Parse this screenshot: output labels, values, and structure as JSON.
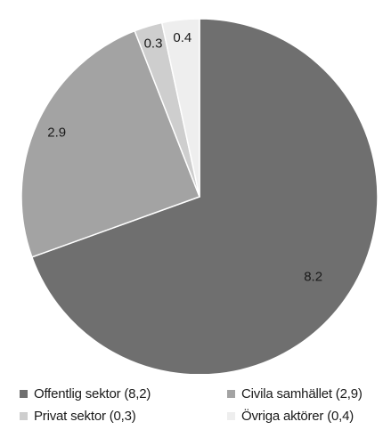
{
  "chart_data": {
    "type": "pie",
    "title": "",
    "slices": [
      {
        "label": "Offentlig sektor (8,2)",
        "value": 8.2,
        "value_label": "8.2",
        "color": "#6f6f6f"
      },
      {
        "label": "Civila samhället (2,9)",
        "value": 2.9,
        "value_label": "2.9",
        "color": "#a3a3a3"
      },
      {
        "label": "Privat sektor (0,3)",
        "value": 0.3,
        "value_label": "0.3",
        "color": "#cecece"
      },
      {
        "label": "Övriga aktörer (0,4)",
        "value": 0.4,
        "value_label": "0.4",
        "color": "#eeeeee"
      }
    ],
    "legend_position": "bottom",
    "start_angle": "top, clockwise"
  }
}
